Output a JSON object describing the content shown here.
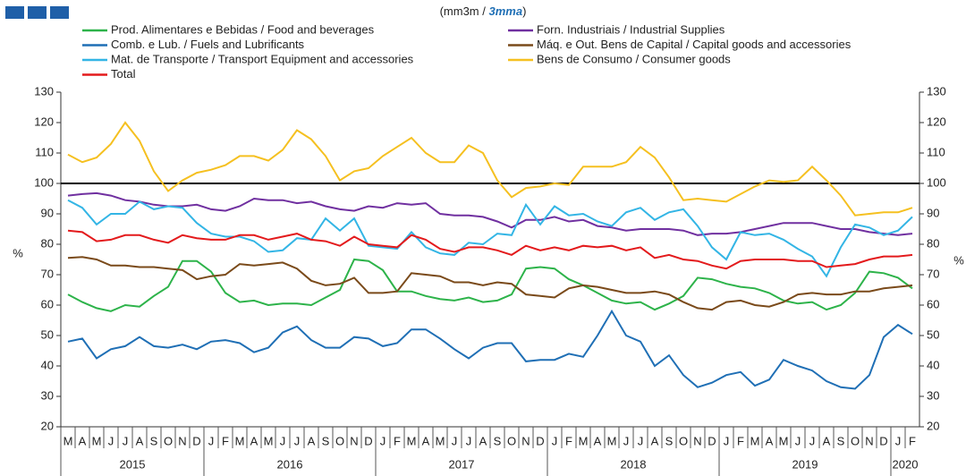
{
  "chart_data": {
    "type": "line",
    "title": [
      "(mm3m /",
      "3mma",
      ")"
    ],
    "y_label": "%",
    "categories": [
      "M",
      "A",
      "M",
      "J",
      "J",
      "A",
      "S",
      "O",
      "N",
      "D",
      "J",
      "F",
      "M",
      "A",
      "M",
      "J",
      "J",
      "A",
      "S",
      "O",
      "N",
      "D",
      "J",
      "F",
      "M",
      "A",
      "M",
      "J",
      "J",
      "A",
      "S",
      "O",
      "N",
      "D",
      "J",
      "F",
      "M",
      "A",
      "M",
      "J",
      "J",
      "A",
      "S",
      "O",
      "N",
      "D",
      "J",
      "F",
      "M",
      "A",
      "M",
      "J",
      "J",
      "A",
      "S",
      "O",
      "N",
      "D",
      "J",
      "F"
    ],
    "year_groups": [
      {
        "label": "2015",
        "months": 10
      },
      {
        "label": "2016",
        "months": 12
      },
      {
        "label": "2017",
        "months": 12
      },
      {
        "label": "2018",
        "months": 12
      },
      {
        "label": "2019",
        "months": 12
      },
      {
        "label": "2020",
        "months": 2
      }
    ],
    "ylim": [
      20,
      130
    ],
    "yticks": [
      20,
      30,
      40,
      50,
      60,
      70,
      80,
      90,
      100,
      110,
      120,
      130
    ],
    "reference_line": 100,
    "series": [
      {
        "name": "Prod. Alimentares e Bebidas / Food and beverages",
        "color": "#2db34a",
        "values": [
          63.5,
          61,
          59,
          58,
          60,
          59.5,
          63,
          66,
          74.5,
          74.5,
          71,
          64,
          61,
          61.5,
          60,
          60.5,
          60.5,
          60,
          62.5,
          65,
          75,
          74.5,
          71.5,
          64.5,
          64.5,
          63,
          62,
          61.5,
          62.5,
          61,
          61.5,
          63.5,
          72,
          72.5,
          72,
          68.5,
          66.5,
          64,
          61.5,
          60.5,
          61,
          58.5,
          60.5,
          63,
          69,
          68.5,
          67,
          66,
          65.5,
          64,
          61.5,
          60.5,
          61,
          58.5,
          60,
          64,
          71,
          70.5,
          69,
          65.5
        ]
      },
      {
        "name": "Forn. Industriais / Industrial Supplies",
        "color": "#7030a0",
        "values": [
          96,
          96.5,
          96.8,
          96,
          94.5,
          94,
          93,
          92.5,
          92.5,
          93,
          91.5,
          91,
          92.5,
          95,
          94.5,
          94.5,
          93.5,
          94,
          92.5,
          91.5,
          91,
          92.5,
          92,
          93.5,
          93,
          93.5,
          90,
          89.5,
          89.5,
          89,
          87.5,
          85.5,
          88,
          88,
          89,
          87.5,
          88,
          86,
          85.5,
          84.5,
          85,
          85,
          85,
          84.5,
          83,
          83.5,
          83.5,
          84,
          85,
          86,
          87,
          87,
          87,
          86,
          85,
          85,
          84,
          83.5,
          83,
          83.5
        ]
      },
      {
        "name": "Comb. e Lub. /  Fuels and Lubrificants",
        "color": "#1f6fb5",
        "values": [
          48,
          49,
          42.5,
          45.5,
          46.5,
          49.5,
          46.5,
          46,
          47,
          45.5,
          48,
          48.5,
          47.5,
          44.5,
          46,
          51,
          53,
          48.5,
          46,
          46,
          49.5,
          49,
          46.5,
          47.5,
          52,
          52,
          49,
          45.5,
          42.5,
          46,
          47.5,
          47.5,
          41.5,
          42,
          42,
          44,
          43,
          50,
          58,
          50,
          48,
          40,
          43.5,
          37,
          33,
          34.5,
          37,
          38,
          33.5,
          35.5,
          42,
          40,
          38.5,
          35,
          33,
          32.5,
          37,
          49.5,
          53.5,
          50.5
        ]
      },
      {
        "name": "Máq. e Out. Bens de Capital / Capital goods and accessories",
        "color": "#7a4a1a",
        "values": [
          75.5,
          75.8,
          75,
          73,
          73,
          72.5,
          72.5,
          72,
          71.5,
          68.5,
          69.5,
          70,
          73.5,
          73,
          73.5,
          74,
          72,
          68,
          66.5,
          67,
          69,
          64,
          64,
          64.5,
          70.5,
          70,
          69.5,
          67.5,
          67.5,
          66.5,
          67.5,
          67,
          63.5,
          63,
          62.5,
          65.5,
          66.5,
          66,
          65,
          64,
          64,
          64.5,
          63.5,
          61,
          59,
          58.5,
          61,
          61.5,
          60,
          59.5,
          61,
          63.5,
          64,
          63.5,
          63.5,
          64.5,
          64.5,
          65.5,
          66,
          66.5
        ]
      },
      {
        "name": "Mat. de Transporte / Transport Equipment and accessories",
        "color": "#33b5e5",
        "values": [
          94.5,
          92,
          86.5,
          90,
          90,
          94,
          91.5,
          92.5,
          92,
          87,
          83.5,
          82.5,
          82.5,
          81,
          77.5,
          78,
          82,
          81.5,
          88.5,
          84.5,
          88.5,
          79.5,
          79,
          78.5,
          84,
          79,
          77,
          76.5,
          80.5,
          80,
          83.5,
          83,
          93,
          86.5,
          92.5,
          89.5,
          90,
          87.5,
          86,
          90.5,
          92,
          88,
          90.5,
          91.5,
          86,
          79,
          75,
          84,
          83,
          83.5,
          81.5,
          78.5,
          76,
          69.5,
          79,
          86.5,
          85.5,
          83,
          84.5,
          89
        ]
      },
      {
        "name": "Bens de Consumo / Consumer goods",
        "color": "#f5c020",
        "values": [
          109.5,
          107,
          108.5,
          113,
          120,
          114,
          104,
          97.5,
          101,
          103.5,
          104.5,
          106,
          109,
          109,
          107.5,
          111,
          117.5,
          114.5,
          109,
          101,
          104,
          105,
          109,
          112,
          115,
          110,
          107,
          107,
          112.5,
          110,
          101,
          95.5,
          98.5,
          99,
          100,
          99.5,
          105.5,
          105.5,
          105.5,
          107,
          112,
          108.5,
          102,
          94.5,
          95,
          94.5,
          94,
          96.5,
          99,
          101,
          100.5,
          101,
          105.5,
          101,
          96,
          89.5,
          90,
          90.5,
          90.5,
          92
        ]
      },
      {
        "name": "Total",
        "color": "#e31a1c",
        "values": [
          84.5,
          84,
          81,
          81.5,
          83,
          83,
          81.5,
          80.5,
          83,
          82,
          81.5,
          81.5,
          83,
          83,
          81.5,
          82.5,
          83.5,
          81.5,
          81,
          79.5,
          82.5,
          80,
          79.5,
          79,
          83,
          81.5,
          78.5,
          77.5,
          79,
          79,
          78,
          76.5,
          79.5,
          78,
          79,
          78,
          79.5,
          79,
          79.5,
          78,
          79,
          75.5,
          76.5,
          75,
          74.5,
          73,
          72,
          74.5,
          75,
          75,
          75,
          74.5,
          74.5,
          72.5,
          73,
          73.5,
          75,
          76,
          76,
          76.5
        ]
      }
    ]
  }
}
